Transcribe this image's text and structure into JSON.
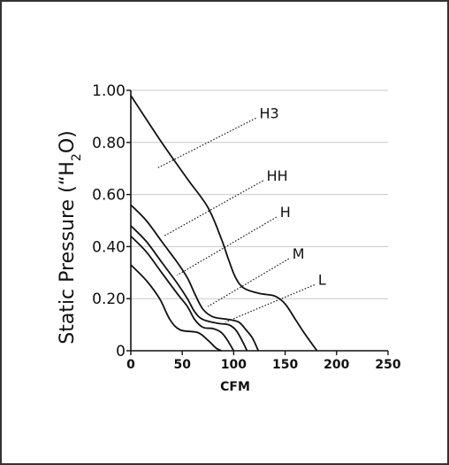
{
  "chart_data": {
    "type": "line",
    "xlabel": "CFM",
    "ylabel_parts": [
      "Static Pressure (“H",
      "2",
      "O)"
    ],
    "xlim": [
      0,
      250
    ],
    "ylim": [
      0,
      1.0
    ],
    "x_ticks": [
      "0",
      "50",
      "100",
      "150",
      "200",
      "250"
    ],
    "y_ticks": [
      "0",
      "0.20",
      "0.40",
      "0.60",
      "0.80",
      "1.00"
    ],
    "grid": "horizontal",
    "colors": {
      "curve": "#111111",
      "grid": "#c8c8c8",
      "axis": "#111111",
      "leader": "#111111"
    },
    "series": [
      {
        "name": "H3",
        "points": [
          [
            0,
            0.98
          ],
          [
            30,
            0.8
          ],
          [
            55,
            0.66
          ],
          [
            75,
            0.55
          ],
          [
            88,
            0.43
          ],
          [
            95,
            0.35
          ],
          [
            102,
            0.28
          ],
          [
            110,
            0.24
          ],
          [
            125,
            0.22
          ],
          [
            140,
            0.21
          ],
          [
            150,
            0.18
          ],
          [
            160,
            0.12
          ],
          [
            170,
            0.06
          ],
          [
            181,
            0.0
          ]
        ],
        "label_anchor": [
          125,
          0.9
        ],
        "leader_to": [
          25,
          0.7
        ]
      },
      {
        "name": "HH",
        "points": [
          [
            0,
            0.56
          ],
          [
            15,
            0.5
          ],
          [
            30,
            0.42
          ],
          [
            45,
            0.34
          ],
          [
            55,
            0.28
          ],
          [
            62,
            0.22
          ],
          [
            70,
            0.16
          ],
          [
            80,
            0.13
          ],
          [
            95,
            0.12
          ],
          [
            105,
            0.11
          ],
          [
            112,
            0.08
          ],
          [
            118,
            0.05
          ],
          [
            124,
            0.0
          ]
        ],
        "label_anchor": [
          132,
          0.66
        ],
        "leader_to": [
          32,
          0.44
        ]
      },
      {
        "name": "H",
        "points": [
          [
            0,
            0.48
          ],
          [
            15,
            0.42
          ],
          [
            30,
            0.34
          ],
          [
            45,
            0.26
          ],
          [
            55,
            0.2
          ],
          [
            62,
            0.15
          ],
          [
            70,
            0.12
          ],
          [
            85,
            0.105
          ],
          [
            95,
            0.1
          ],
          [
            102,
            0.08
          ],
          [
            108,
            0.04
          ],
          [
            113,
            0.0
          ]
        ],
        "label_anchor": [
          145,
          0.52
        ],
        "leader_to": [
          45,
          0.29
        ]
      },
      {
        "name": "M",
        "points": [
          [
            0,
            0.44
          ],
          [
            15,
            0.38
          ],
          [
            30,
            0.3
          ],
          [
            45,
            0.22
          ],
          [
            55,
            0.17
          ],
          [
            62,
            0.12
          ],
          [
            70,
            0.09
          ],
          [
            80,
            0.085
          ],
          [
            88,
            0.07
          ],
          [
            94,
            0.04
          ],
          [
            100,
            0.0
          ]
        ],
        "label_anchor": [
          157,
          0.36
        ],
        "leader_to": [
          75,
          0.17
        ]
      },
      {
        "name": "L",
        "points": [
          [
            0,
            0.33
          ],
          [
            15,
            0.27
          ],
          [
            28,
            0.2
          ],
          [
            38,
            0.12
          ],
          [
            48,
            0.08
          ],
          [
            65,
            0.07
          ],
          [
            75,
            0.04
          ],
          [
            83,
            0.01
          ],
          [
            88,
            0.0
          ]
        ],
        "label_anchor": [
          182,
          0.26
        ],
        "leader_to": [
          92,
          0.11
        ]
      }
    ]
  }
}
